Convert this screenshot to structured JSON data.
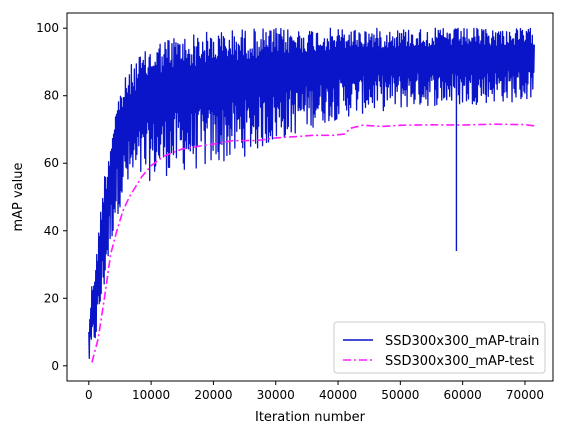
{
  "chart_data": {
    "type": "line",
    "title": "",
    "xlabel": "Iteration number",
    "ylabel": "mAP value",
    "xlim": [
      -3500,
      74500
    ],
    "ylim": [
      -4.5,
      104.5
    ],
    "xticks": [
      0,
      10000,
      20000,
      30000,
      40000,
      50000,
      60000,
      70000
    ],
    "xtick_labels": [
      "0",
      "10000",
      "20000",
      "30000",
      "40000",
      "50000",
      "60000",
      "70000"
    ],
    "yticks": [
      0,
      20,
      40,
      60,
      80,
      100
    ],
    "ytick_labels": [
      "0",
      "20",
      "40",
      "60",
      "80",
      "100"
    ],
    "grid": false,
    "legend_position": "lower-right",
    "series": [
      {
        "name": "SSD300x300_mAP-train",
        "color": "#0a14c8",
        "style": "solid",
        "band": {
          "x": [
            0,
            500,
            1000,
            1500,
            2000,
            2500,
            3000,
            3500,
            4000,
            5000,
            6000,
            7000,
            8000,
            9000,
            10000,
            12000,
            14000,
            16000,
            18000,
            20000,
            25000,
            30000,
            35000,
            40000,
            45000,
            50000,
            55000,
            60000,
            65000,
            70000,
            71500
          ],
          "upper": [
            12,
            25,
            30,
            38,
            50,
            57,
            62,
            68,
            75,
            82,
            86,
            90,
            92,
            93,
            95,
            97,
            98,
            98,
            99,
            99,
            100,
            100,
            100,
            100,
            100,
            100,
            100,
            100,
            100,
            100,
            100
          ],
          "lower": [
            0,
            2,
            6,
            10,
            16,
            22,
            28,
            34,
            40,
            47,
            50,
            52,
            53,
            54,
            55,
            56,
            57,
            58,
            58,
            59,
            62,
            66,
            70,
            73,
            75,
            76,
            77,
            77,
            78,
            78,
            80
          ]
        },
        "spike": {
          "x": 59000,
          "y": 34
        }
      },
      {
        "name": "SSD300x300_mAP-test",
        "color": "#ff1aff",
        "style": "dashdot",
        "x": [
          500,
          1500,
          2500,
          3500,
          4500,
          5500,
          6500,
          7500,
          8500,
          10000,
          12000,
          15000,
          18000,
          20000,
          23000,
          27000,
          30000,
          33000,
          36000,
          39000,
          41000,
          42000,
          44000,
          47000,
          50000,
          55000,
          60000,
          65000,
          70000,
          71500
        ],
        "y": [
          1,
          8,
          20,
          33,
          40,
          46,
          50,
          53,
          56,
          59,
          62,
          64,
          65,
          65.5,
          66.5,
          67,
          67.5,
          68,
          68.2,
          68.5,
          68.6,
          70.5,
          71,
          71.1,
          71.2,
          71.3,
          71.2,
          71.3,
          71.2,
          71.2
        ]
      }
    ]
  }
}
